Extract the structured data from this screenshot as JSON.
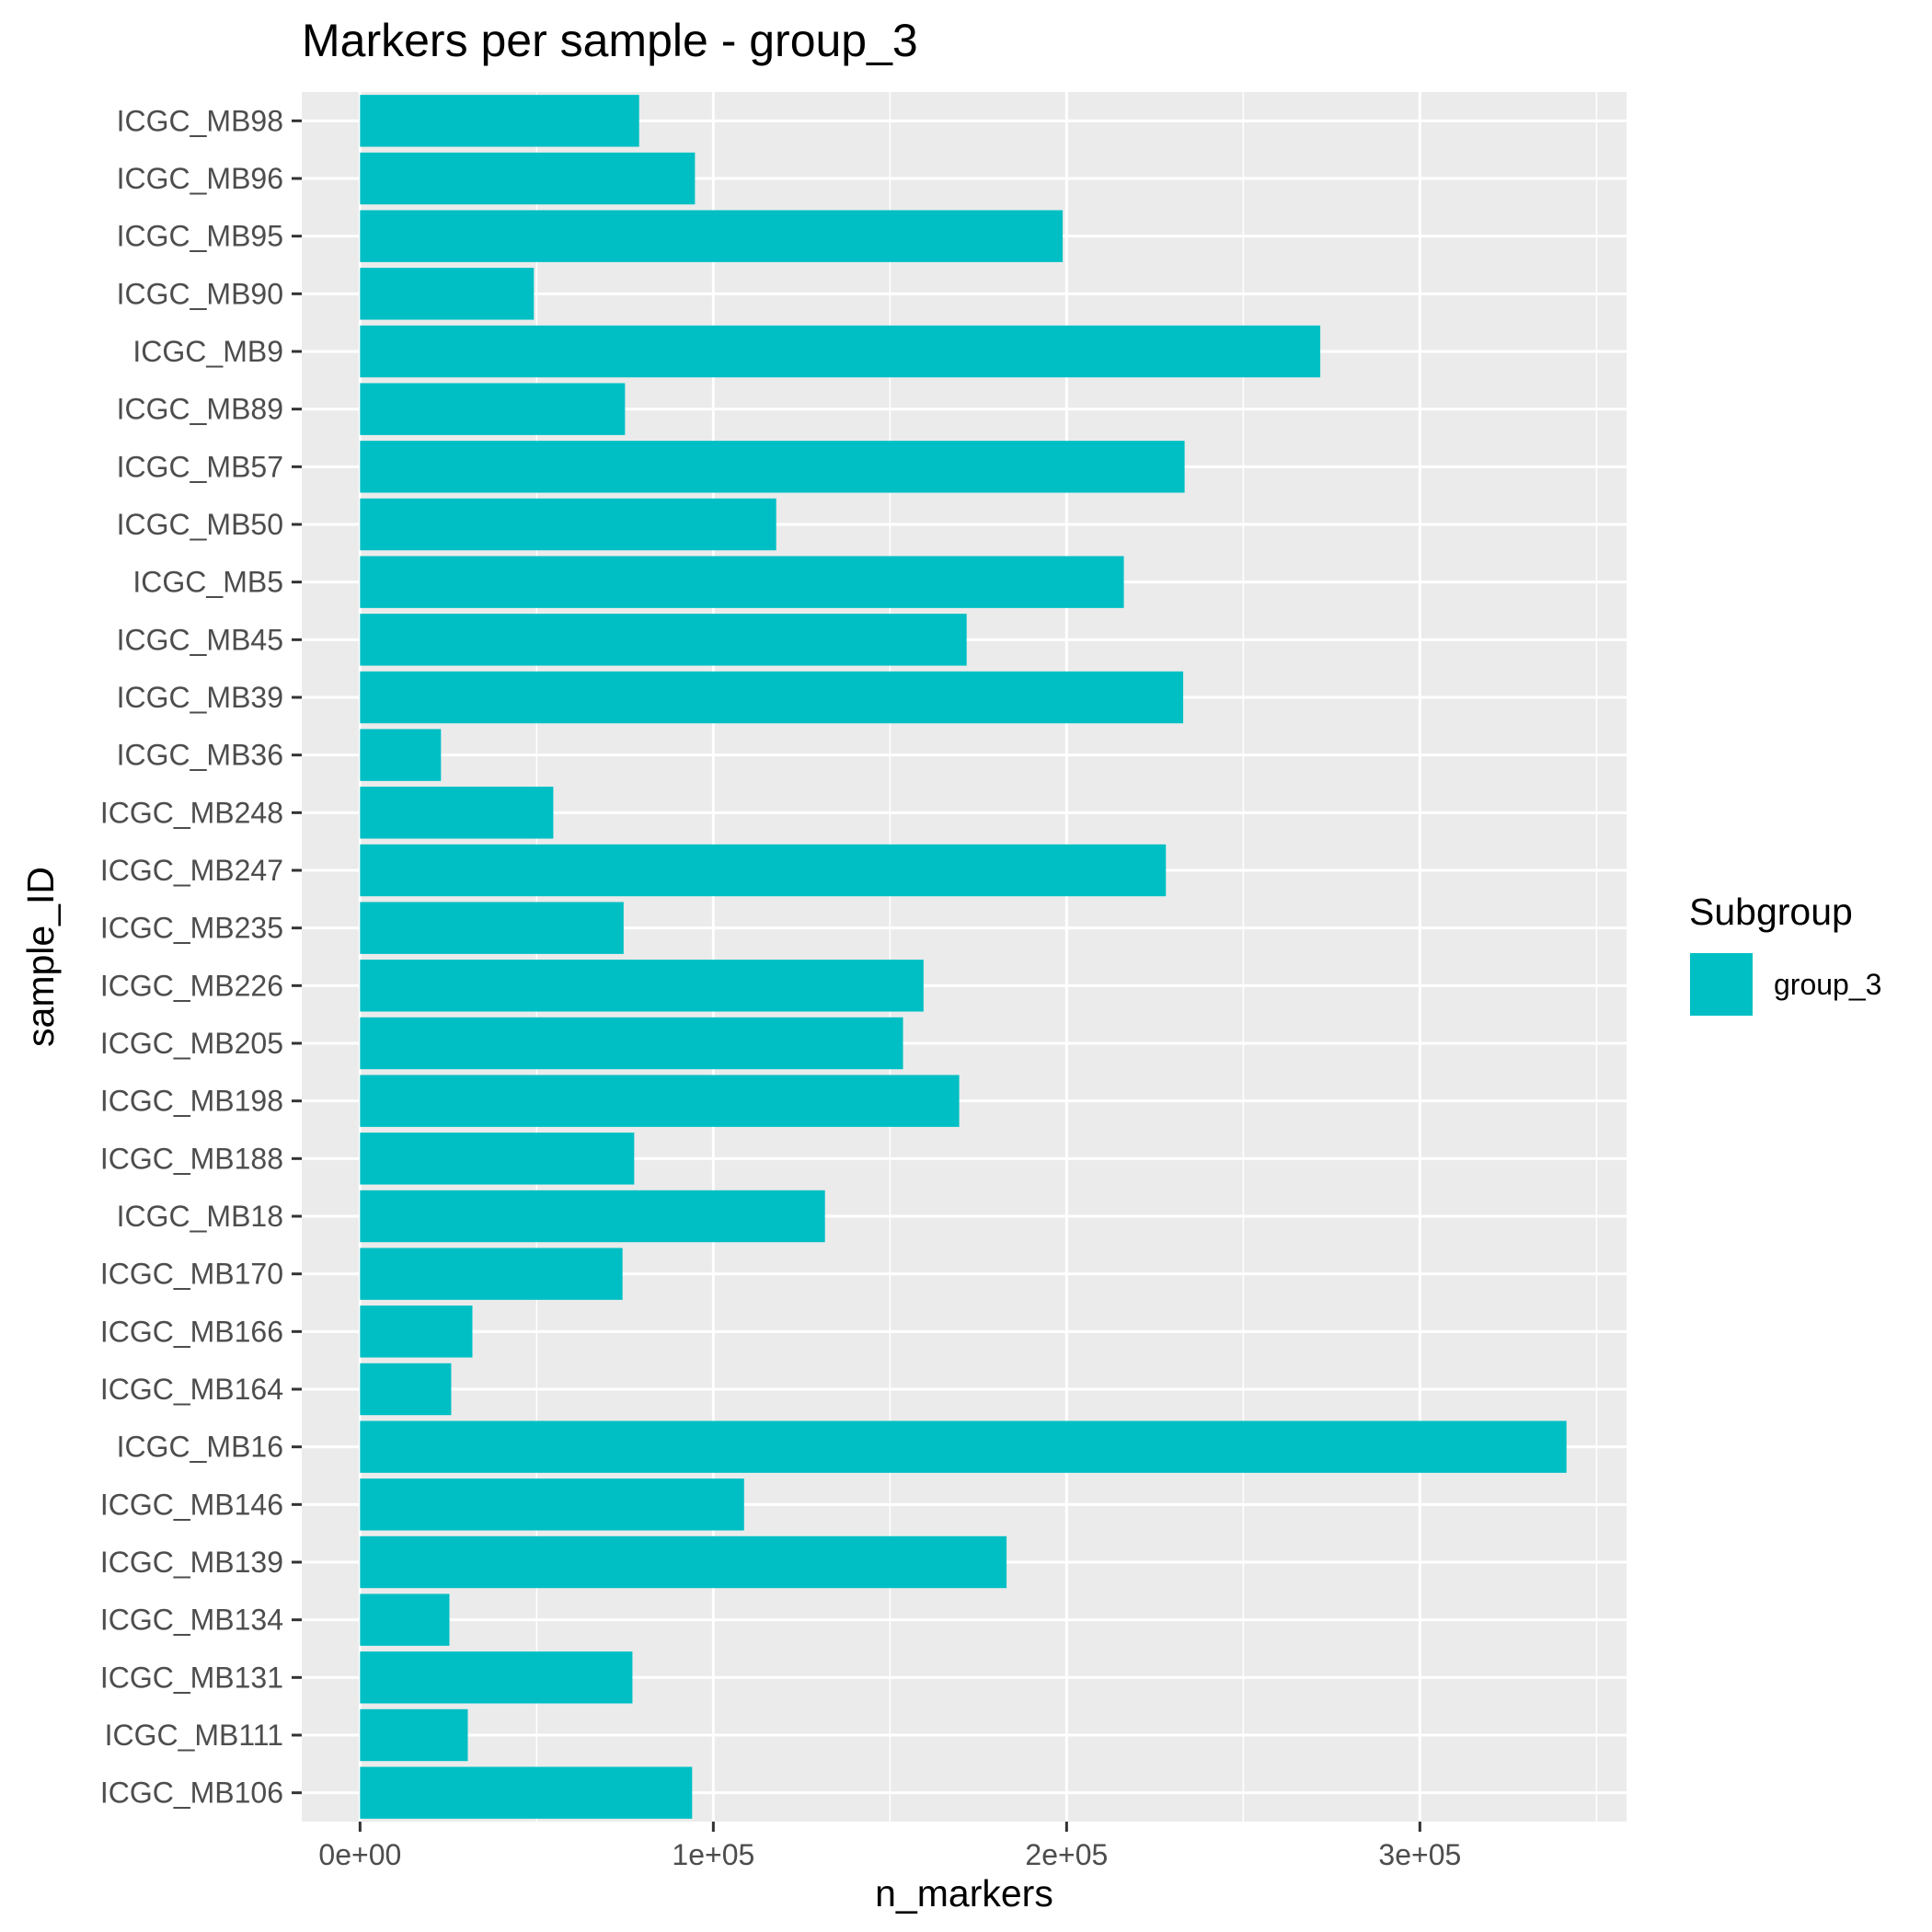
{
  "chart_data": {
    "type": "bar",
    "orientation": "horizontal",
    "title": "Markers per sample - group_3",
    "xlabel": "n_markers",
    "ylabel": "sample_ID",
    "xlim": [
      -16500,
      358500
    ],
    "x_ticks": [
      0,
      100000,
      200000,
      300000
    ],
    "x_tick_labels": [
      "0e+00",
      "1e+05",
      "2e+05",
      "3e+05"
    ],
    "categories": [
      "ICGC_MB98",
      "ICGC_MB96",
      "ICGC_MB95",
      "ICGC_MB90",
      "ICGC_MB9",
      "ICGC_MB89",
      "ICGC_MB57",
      "ICGC_MB50",
      "ICGC_MB5",
      "ICGC_MB45",
      "ICGC_MB39",
      "ICGC_MB36",
      "ICGC_MB248",
      "ICGC_MB247",
      "ICGC_MB235",
      "ICGC_MB226",
      "ICGC_MB205",
      "ICGC_MB198",
      "ICGC_MB188",
      "ICGC_MB18",
      "ICGC_MB170",
      "ICGC_MB166",
      "ICGC_MB164",
      "ICGC_MB16",
      "ICGC_MB146",
      "ICGC_MB139",
      "ICGC_MB134",
      "ICGC_MB131",
      "ICGC_MB111",
      "ICGC_MB106"
    ],
    "series": [
      {
        "name": "group_3",
        "color": "#00BFC4",
        "values": [
          79000,
          94800,
          198900,
          49200,
          271800,
          75000,
          233400,
          117800,
          216200,
          171700,
          233000,
          22900,
          54700,
          228100,
          74600,
          159500,
          153700,
          169600,
          77600,
          131600,
          74300,
          31800,
          25800,
          341500,
          108700,
          183000,
          25300,
          77100,
          30500,
          94000
        ]
      }
    ],
    "legend": {
      "title": "Subgroup",
      "position": "right",
      "entries": [
        "group_3"
      ]
    },
    "grid": true
  }
}
